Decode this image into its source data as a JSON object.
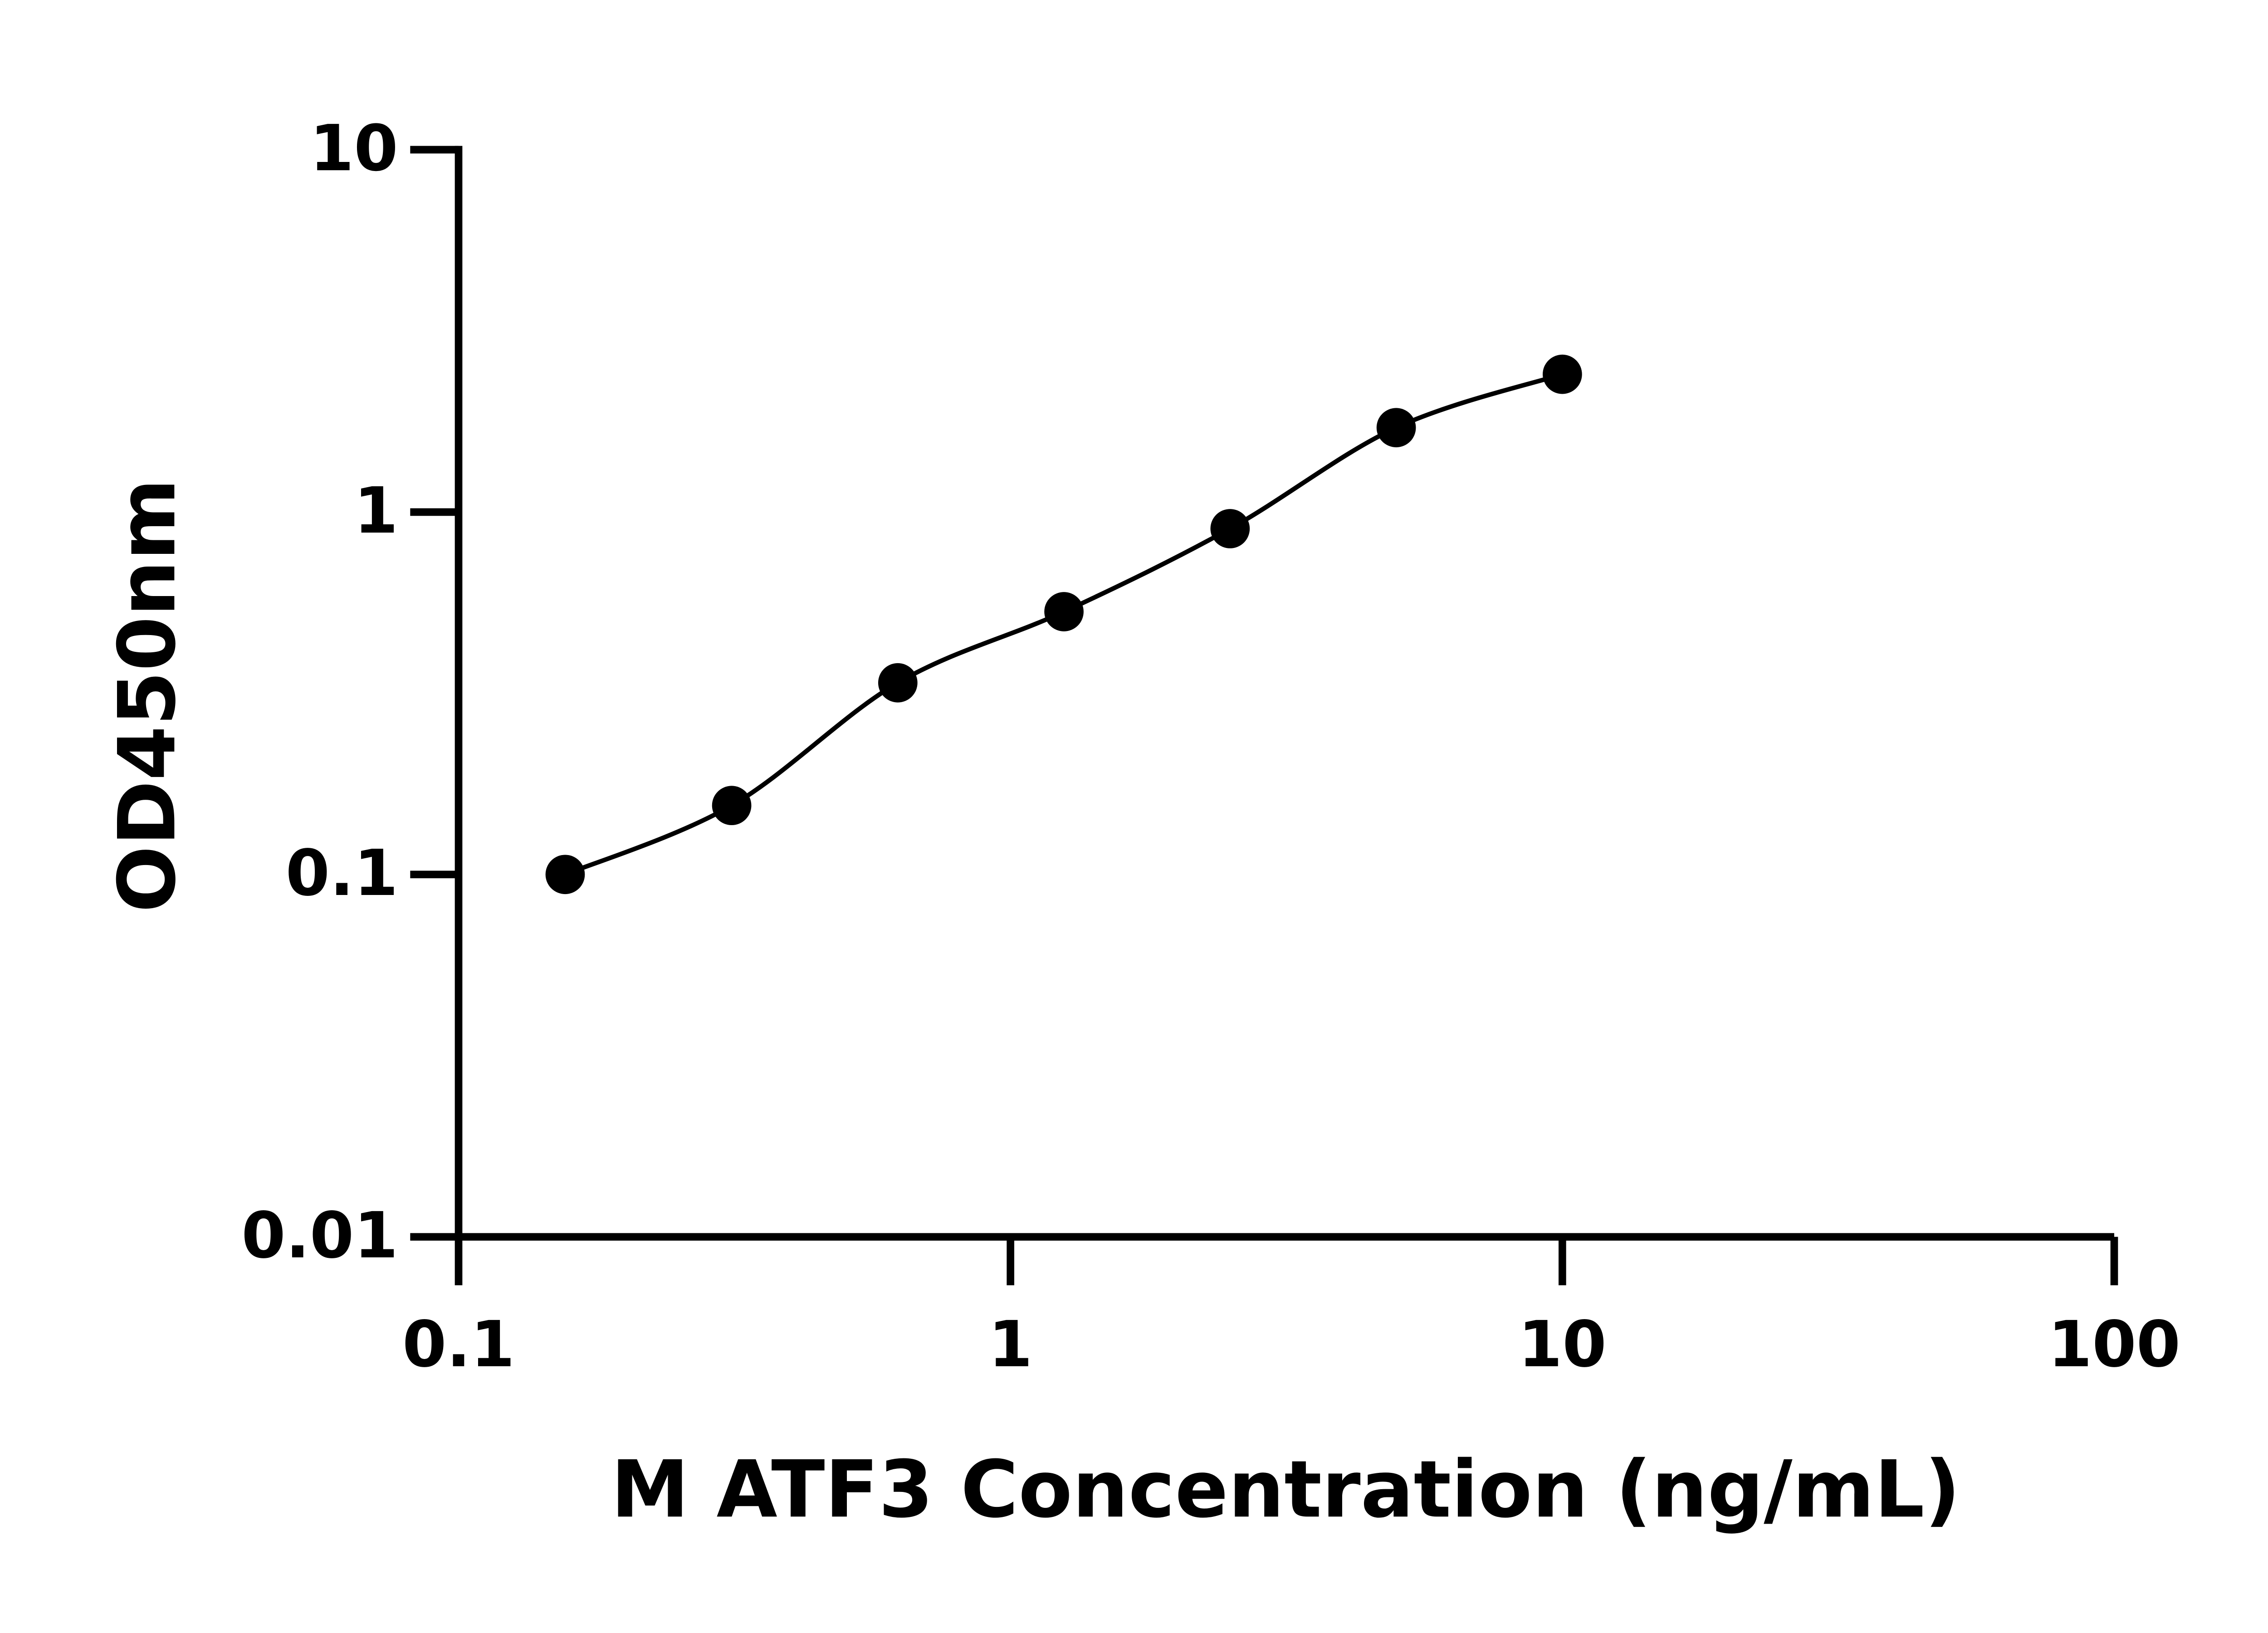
{
  "chart_data": {
    "type": "scatter",
    "x_label": "M ATF3 Concentration (ng/mL)",
    "y_label": "OD450nm",
    "x": [
      0.156,
      0.3125,
      0.625,
      1.25,
      2.5,
      5,
      10
    ],
    "values": [
      0.1,
      0.155,
      0.338,
      0.531,
      0.9,
      1.71,
      2.4
    ],
    "color": "#000000",
    "curve": true,
    "xlog": true,
    "ylog": true,
    "xlim": [
      0.1,
      100
    ],
    "xticks": [
      0.1,
      1,
      10,
      100
    ],
    "ylim": [
      0.01,
      10
    ],
    "yticks": [
      0.01,
      0.1,
      1,
      10
    ]
  }
}
